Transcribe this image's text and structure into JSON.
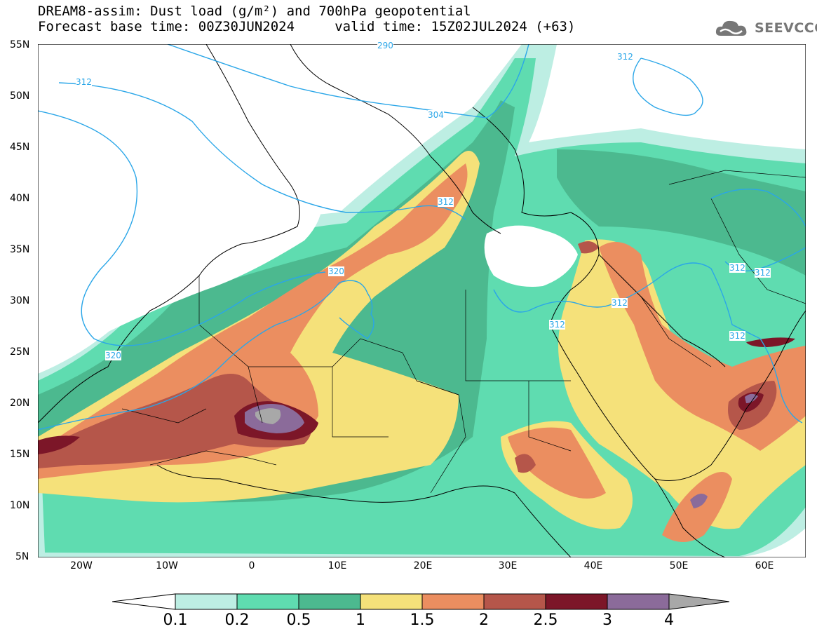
{
  "title": {
    "line1": "DREAM8-assim: Dust load (g/m²) and 700hPa geopotential",
    "line2": "Forecast base time: 00Z30JUN2024     valid time: 15Z02JUL2024 (+63)"
  },
  "logo": {
    "text": "SEEVCCC",
    "icon": "cloud-icon"
  },
  "axes": {
    "lat_labels": [
      "55N",
      "50N",
      "45N",
      "40N",
      "35N",
      "30N",
      "25N",
      "20N",
      "15N",
      "10N",
      "5N"
    ],
    "lon_labels": [
      "20W",
      "10W",
      "0",
      "10E",
      "20E",
      "30E",
      "40E",
      "50E",
      "60E"
    ]
  },
  "contours": {
    "labels": [
      "290",
      "304",
      "312",
      "312",
      "312",
      "320",
      "312",
      "312",
      "312",
      "312",
      "312",
      "320"
    ]
  },
  "colorbar": {
    "labels": [
      "0.1",
      "0.2",
      "0.5",
      "1",
      "1.5",
      "2",
      "2.5",
      "3",
      "4"
    ],
    "colors": [
      "#ffffff",
      "#bdeee3",
      "#5fdcb0",
      "#4cb98f",
      "#f5e17a",
      "#eb8e60",
      "#b5564a",
      "#7c1628",
      "#8b6b9a",
      "#a8a8a8"
    ]
  },
  "map_colors": {
    "land_outline": "#000000",
    "contour_line": "#2aa6e8"
  }
}
